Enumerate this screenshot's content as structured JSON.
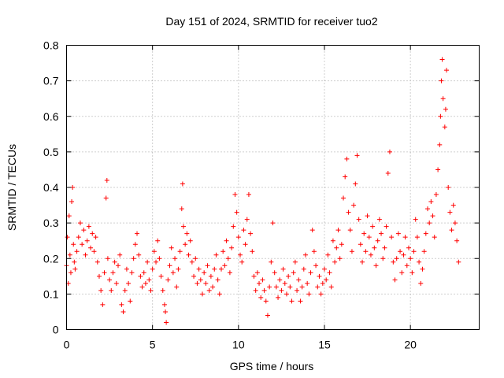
{
  "chart_data": {
    "type": "scatter",
    "title": "Day 151 of 2024, SRMTID for receiver tuo2",
    "xlabel": "GPS time / hours",
    "ylabel": "SRMTID / TECUs",
    "xlim": [
      0,
      24
    ],
    "ylim": [
      0,
      0.8
    ],
    "x_ticks": [
      0,
      5,
      10,
      15,
      20
    ],
    "y_ticks": [
      0,
      0.1,
      0.2,
      0.3,
      0.4,
      0.5,
      0.6,
      0.7,
      0.8
    ],
    "x_tick_labels": [
      "0",
      "5",
      "10",
      "15",
      "20"
    ],
    "y_tick_labels": [
      "0",
      "0.1",
      "0.2",
      "0.3",
      "0.4",
      "0.5",
      "0.6",
      "0.7",
      "0.8"
    ],
    "grid": true,
    "marker": "plus",
    "color": "#ff0000",
    "series": [
      {
        "name": "SRMTID",
        "points": [
          [
            0.0,
            0.18
          ],
          [
            0.05,
            0.26
          ],
          [
            0.1,
            0.13
          ],
          [
            0.15,
            0.32
          ],
          [
            0.2,
            0.21
          ],
          [
            0.25,
            0.16
          ],
          [
            0.3,
            0.36
          ],
          [
            0.35,
            0.4
          ],
          [
            0.4,
            0.24
          ],
          [
            0.45,
            0.19
          ],
          [
            0.5,
            0.17
          ],
          [
            0.6,
            0.22
          ],
          [
            0.7,
            0.26
          ],
          [
            0.8,
            0.3
          ],
          [
            0.9,
            0.24
          ],
          [
            1.0,
            0.28
          ],
          [
            1.1,
            0.21
          ],
          [
            1.2,
            0.25
          ],
          [
            1.3,
            0.29
          ],
          [
            1.4,
            0.23
          ],
          [
            1.5,
            0.27
          ],
          [
            1.6,
            0.22
          ],
          [
            1.7,
            0.26
          ],
          [
            1.8,
            0.19
          ],
          [
            1.9,
            0.15
          ],
          [
            2.0,
            0.11
          ],
          [
            2.1,
            0.07
          ],
          [
            2.2,
            0.16
          ],
          [
            2.3,
            0.37
          ],
          [
            2.35,
            0.42
          ],
          [
            2.4,
            0.2
          ],
          [
            2.5,
            0.14
          ],
          [
            2.6,
            0.11
          ],
          [
            2.7,
            0.16
          ],
          [
            2.8,
            0.19
          ],
          [
            2.9,
            0.13
          ],
          [
            3.0,
            0.18
          ],
          [
            3.1,
            0.21
          ],
          [
            3.2,
            0.07
          ],
          [
            3.3,
            0.05
          ],
          [
            3.4,
            0.11
          ],
          [
            3.5,
            0.17
          ],
          [
            3.6,
            0.13
          ],
          [
            3.7,
            0.08
          ],
          [
            3.8,
            0.16
          ],
          [
            3.9,
            0.2
          ],
          [
            4.0,
            0.24
          ],
          [
            4.1,
            0.27
          ],
          [
            4.2,
            0.21
          ],
          [
            4.3,
            0.15
          ],
          [
            4.4,
            0.12
          ],
          [
            4.5,
            0.16
          ],
          [
            4.6,
            0.13
          ],
          [
            4.7,
            0.19
          ],
          [
            4.8,
            0.14
          ],
          [
            4.9,
            0.11
          ],
          [
            5.0,
            0.17
          ],
          [
            5.1,
            0.22
          ],
          [
            5.2,
            0.19
          ],
          [
            5.3,
            0.25
          ],
          [
            5.4,
            0.2
          ],
          [
            5.5,
            0.15
          ],
          [
            5.6,
            0.11
          ],
          [
            5.7,
            0.07
          ],
          [
            5.75,
            0.05
          ],
          [
            5.8,
            0.02
          ],
          [
            5.9,
            0.14
          ],
          [
            6.0,
            0.18
          ],
          [
            6.1,
            0.23
          ],
          [
            6.2,
            0.16
          ],
          [
            6.3,
            0.2
          ],
          [
            6.4,
            0.12
          ],
          [
            6.5,
            0.17
          ],
          [
            6.6,
            0.22
          ],
          [
            6.7,
            0.34
          ],
          [
            6.75,
            0.41
          ],
          [
            6.8,
            0.29
          ],
          [
            6.9,
            0.24
          ],
          [
            7.0,
            0.27
          ],
          [
            7.1,
            0.21
          ],
          [
            7.2,
            0.25
          ],
          [
            7.3,
            0.19
          ],
          [
            7.4,
            0.15
          ],
          [
            7.5,
            0.2
          ],
          [
            7.6,
            0.13
          ],
          [
            7.7,
            0.17
          ],
          [
            7.8,
            0.14
          ],
          [
            7.9,
            0.1
          ],
          [
            8.0,
            0.16
          ],
          [
            8.1,
            0.13
          ],
          [
            8.2,
            0.18
          ],
          [
            8.3,
            0.11
          ],
          [
            8.4,
            0.15
          ],
          [
            8.5,
            0.12
          ],
          [
            8.6,
            0.17
          ],
          [
            8.7,
            0.21
          ],
          [
            8.8,
            0.14
          ],
          [
            8.9,
            0.1
          ],
          [
            9.0,
            0.17
          ],
          [
            9.1,
            0.22
          ],
          [
            9.2,
            0.18
          ],
          [
            9.3,
            0.25
          ],
          [
            9.4,
            0.2
          ],
          [
            9.5,
            0.16
          ],
          [
            9.6,
            0.23
          ],
          [
            9.7,
            0.29
          ],
          [
            9.8,
            0.38
          ],
          [
            9.9,
            0.33
          ],
          [
            10.0,
            0.26
          ],
          [
            10.1,
            0.21
          ],
          [
            10.2,
            0.19
          ],
          [
            10.3,
            0.28
          ],
          [
            10.4,
            0.24
          ],
          [
            10.5,
            0.31
          ],
          [
            10.6,
            0.38
          ],
          [
            10.7,
            0.27
          ],
          [
            10.8,
            0.22
          ],
          [
            10.9,
            0.15
          ],
          [
            11.0,
            0.11
          ],
          [
            11.1,
            0.16
          ],
          [
            11.2,
            0.13
          ],
          [
            11.3,
            0.09
          ],
          [
            11.4,
            0.14
          ],
          [
            11.5,
            0.11
          ],
          [
            11.6,
            0.08
          ],
          [
            11.7,
            0.04
          ],
          [
            11.8,
            0.12
          ],
          [
            11.9,
            0.19
          ],
          [
            12.0,
            0.3
          ],
          [
            12.1,
            0.16
          ],
          [
            12.2,
            0.12
          ],
          [
            12.3,
            0.09
          ],
          [
            12.4,
            0.14
          ],
          [
            12.5,
            0.11
          ],
          [
            12.6,
            0.17
          ],
          [
            12.7,
            0.13
          ],
          [
            12.8,
            0.1
          ],
          [
            12.9,
            0.15
          ],
          [
            13.0,
            0.12
          ],
          [
            13.1,
            0.08
          ],
          [
            13.2,
            0.16
          ],
          [
            13.3,
            0.19
          ],
          [
            13.4,
            0.11
          ],
          [
            13.5,
            0.14
          ],
          [
            13.6,
            0.08
          ],
          [
            13.7,
            0.12
          ],
          [
            13.8,
            0.17
          ],
          [
            13.9,
            0.21
          ],
          [
            14.0,
            0.13
          ],
          [
            14.1,
            0.1
          ],
          [
            14.2,
            0.16
          ],
          [
            14.3,
            0.28
          ],
          [
            14.4,
            0.22
          ],
          [
            14.5,
            0.18
          ],
          [
            14.6,
            0.12
          ],
          [
            14.7,
            0.15
          ],
          [
            14.8,
            0.1
          ],
          [
            14.9,
            0.13
          ],
          [
            15.0,
            0.17
          ],
          [
            15.1,
            0.14
          ],
          [
            15.2,
            0.21
          ],
          [
            15.3,
            0.16
          ],
          [
            15.4,
            0.12
          ],
          [
            15.5,
            0.25
          ],
          [
            15.6,
            0.19
          ],
          [
            15.7,
            0.23
          ],
          [
            15.8,
            0.28
          ],
          [
            15.9,
            0.2
          ],
          [
            16.0,
            0.24
          ],
          [
            16.1,
            0.37
          ],
          [
            16.2,
            0.43
          ],
          [
            16.3,
            0.48
          ],
          [
            16.4,
            0.33
          ],
          [
            16.5,
            0.28
          ],
          [
            16.6,
            0.22
          ],
          [
            16.7,
            0.35
          ],
          [
            16.8,
            0.41
          ],
          [
            16.9,
            0.49
          ],
          [
            17.0,
            0.31
          ],
          [
            17.1,
            0.24
          ],
          [
            17.2,
            0.19
          ],
          [
            17.3,
            0.27
          ],
          [
            17.4,
            0.22
          ],
          [
            17.5,
            0.32
          ],
          [
            17.6,
            0.26
          ],
          [
            17.7,
            0.21
          ],
          [
            17.8,
            0.29
          ],
          [
            17.9,
            0.23
          ],
          [
            18.0,
            0.18
          ],
          [
            18.1,
            0.25
          ],
          [
            18.2,
            0.31
          ],
          [
            18.3,
            0.27
          ],
          [
            18.4,
            0.2
          ],
          [
            18.5,
            0.23
          ],
          [
            18.6,
            0.29
          ],
          [
            18.7,
            0.44
          ],
          [
            18.8,
            0.5
          ],
          [
            18.9,
            0.26
          ],
          [
            19.0,
            0.19
          ],
          [
            19.1,
            0.14
          ],
          [
            19.2,
            0.2
          ],
          [
            19.3,
            0.27
          ],
          [
            19.4,
            0.22
          ],
          [
            19.5,
            0.16
          ],
          [
            19.6,
            0.21
          ],
          [
            19.7,
            0.26
          ],
          [
            19.8,
            0.18
          ],
          [
            19.9,
            0.23
          ],
          [
            20.0,
            0.2
          ],
          [
            20.1,
            0.16
          ],
          [
            20.2,
            0.22
          ],
          [
            20.3,
            0.31
          ],
          [
            20.4,
            0.26
          ],
          [
            20.5,
            0.19
          ],
          [
            20.6,
            0.13
          ],
          [
            20.7,
            0.17
          ],
          [
            20.8,
            0.22
          ],
          [
            20.9,
            0.27
          ],
          [
            21.0,
            0.34
          ],
          [
            21.1,
            0.3
          ],
          [
            21.2,
            0.36
          ],
          [
            21.3,
            0.32
          ],
          [
            21.4,
            0.26
          ],
          [
            21.5,
            0.38
          ],
          [
            21.6,
            0.45
          ],
          [
            21.7,
            0.52
          ],
          [
            21.75,
            0.6
          ],
          [
            21.8,
            0.7
          ],
          [
            21.85,
            0.76
          ],
          [
            21.9,
            0.65
          ],
          [
            22.0,
            0.57
          ],
          [
            22.05,
            0.62
          ],
          [
            22.1,
            0.73
          ],
          [
            22.2,
            0.4
          ],
          [
            22.3,
            0.33
          ],
          [
            22.4,
            0.28
          ],
          [
            22.5,
            0.35
          ],
          [
            22.6,
            0.3
          ],
          [
            22.7,
            0.25
          ],
          [
            22.8,
            0.19
          ]
        ]
      }
    ]
  }
}
